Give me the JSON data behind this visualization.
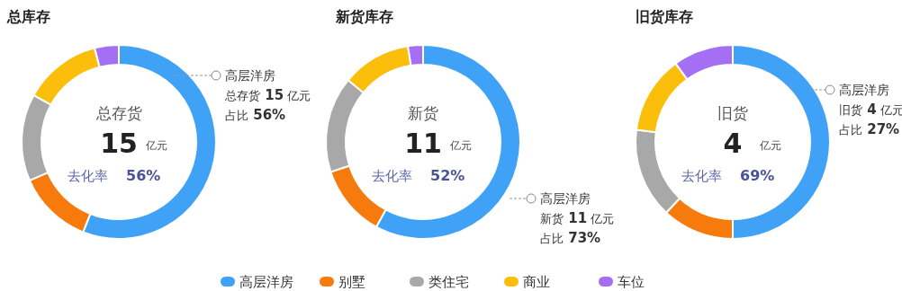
{
  "chart_data": [
    {
      "type": "donut",
      "title": "总库存",
      "categories": [
        "高层洋房",
        "别墅",
        "类住宅",
        "商业",
        "车位"
      ],
      "values": [
        56,
        12.5,
        14.5,
        13,
        4
      ],
      "colors": [
        "#3fa2f6",
        "#f77a0c",
        "#a8a8a8",
        "#fbbf0b",
        "#a56ff3"
      ],
      "annotations": [
        "总存货",
        "15",
        "亿元",
        "去化率",
        "56%",
        "总存货 15 亿元",
        "占比 56%"
      ],
      "legend": "bottom"
    },
    {
      "type": "donut",
      "title": "新货库存",
      "categories": [
        "高层洋房",
        null,
        null,
        null,
        null
      ],
      "values": [
        58,
        12,
        16,
        11.5,
        2.5
      ],
      "colors": [
        "#3fa2f6",
        "#f77a0c",
        "#a8a8a8",
        "#fbbf0b",
        "#a56ff3"
      ],
      "annotations": [
        "新货",
        "11",
        "亿元",
        "去化率",
        "52%",
        "新货 11 亿元",
        "占比 73%"
      ]
    },
    {
      "type": "donut",
      "title": "旧货库存",
      "categories": [
        "高层洋房",
        null,
        null,
        null,
        null
      ],
      "values": [
        50,
        12,
        15,
        13,
        10
      ],
      "colors": [
        "#3fa2f6",
        "#f77a0c",
        "#a8a8a8",
        "#fbbf0b",
        "#a56ff3"
      ],
      "annotations": [
        "旧货",
        "4",
        "亿元",
        "去化率",
        "69%",
        "旧货 4 亿元",
        "占比 27%"
      ]
    }
  ]
}
